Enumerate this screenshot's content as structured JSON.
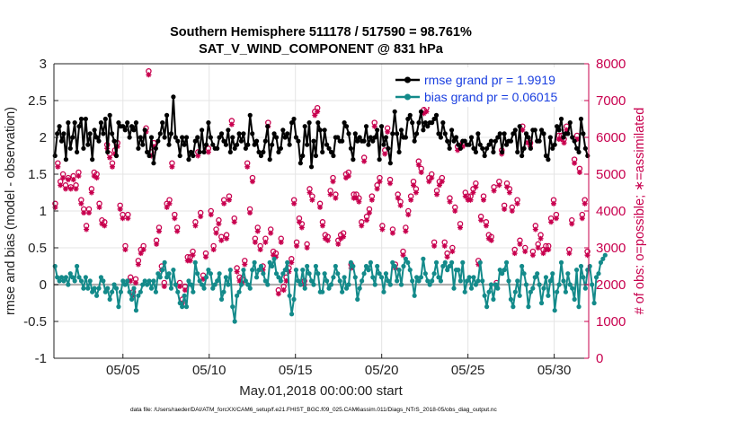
{
  "chart_data": {
    "type": "line",
    "title_line1": "Southern Hemisphere 511178 / 517590 = 98.761%",
    "title_line2": "SAT_V_WIND_COMPONENT @ 831 hPa",
    "xlabel": "May.01,2018 00:00:00 start",
    "ylabel_left": "rmse and bias (model - observation)",
    "ylabel_right": "# of obs: o=possible; ∗=assimilated",
    "footer": "data file: /Users/raeder/DAI/ATM_forcXX/CAM6_setup/f.e21.FHIST_BGC.f09_025.CAM6assim.011/Diags_NTrS_2018-05/obs_diag_output.nc",
    "x_range_days": [
      1,
      32
    ],
    "x_ticks": [
      {
        "day": 5,
        "label": "05/05"
      },
      {
        "day": 10,
        "label": "05/10"
      },
      {
        "day": 15,
        "label": "05/15"
      },
      {
        "day": 20,
        "label": "05/20"
      },
      {
        "day": 25,
        "label": "05/25"
      },
      {
        "day": 30,
        "label": "05/30"
      }
    ],
    "ylim_left": [
      -1,
      3
    ],
    "yticks_left": [
      "-1",
      "-0.5",
      "0",
      "0.5",
      "1",
      "1.5",
      "2",
      "2.5",
      "3"
    ],
    "ylim_right": [
      0,
      8000
    ],
    "yticks_right": [
      "0",
      "1000",
      "2000",
      "3000",
      "4000",
      "5000",
      "6000",
      "7000",
      "8000"
    ],
    "legend": [
      {
        "name": "rmse grand pr = 1.9919",
        "color": "#000000"
      },
      {
        "name": "bias grand pr = 0.06015",
        "color": "#138a8a"
      }
    ],
    "colors": {
      "rmse": "#000000",
      "bias": "#138a8a",
      "obs": "#c8004e",
      "zero_line": "#b0b0b0",
      "grid": "#e4e4e4"
    },
    "series": [
      {
        "name": "rmse",
        "values": [
          1.75,
          2.05,
          2.15,
          1.95,
          2.05,
          1.7,
          2.2,
          1.85,
          2.0,
          2.2,
          1.8,
          2.15,
          2.25,
          1.85,
          2.25,
          1.9,
          2.05,
          1.7,
          2.1,
          2.0,
          1.95,
          2.2,
          2.05,
          2.25,
          1.8,
          2.3,
          2.05,
          1.95,
          1.75,
          2.2,
          2.15,
          2.15,
          2.1,
          2.2,
          2.0,
          2.15,
          2.1,
          2.2,
          1.85,
          2.0,
          1.9,
          2.1,
          1.8,
          1.75,
          2.0,
          1.65,
          1.85,
          1.95,
          2.05,
          2.2,
          2.0,
          2.3,
          1.9,
          2.05,
          2.55,
          2.0,
          1.95,
          1.75,
          2.0,
          1.9,
          2.0,
          1.7,
          1.8,
          1.75,
          1.95,
          2.0,
          1.8,
          2.1,
          1.8,
          1.9,
          2.2,
          2.0,
          1.9,
          1.85,
          1.85,
          2.0,
          2.05,
          1.95,
          1.9,
          2.1,
          1.8,
          2.0,
          1.85,
          1.9,
          2.05,
          1.95,
          2.05,
          1.85,
          1.9,
          2.3,
          2.05,
          1.9,
          1.95,
          1.8,
          1.75,
          1.8,
          1.95,
          2.15,
          1.7,
          1.9,
          2.05,
          2.0,
          1.8,
          1.85,
          2.1,
          2.0,
          2.05,
          1.9,
          2.2,
          2.25,
          2.0,
          1.95,
          1.65,
          1.75,
          2.15,
          1.9,
          2.2,
          1.6,
          1.95,
          1.75,
          2.2,
          2.1,
          1.8,
          2.1,
          1.9,
          1.85,
          1.8,
          1.75,
          2.0,
          2.0,
          1.95,
          1.95,
          2.2,
          2.15,
          2.05,
          1.85,
          1.7,
          2.05,
          1.95,
          2.0,
          1.95,
          1.95,
          2.15,
          1.9,
          2.0,
          1.95,
          2.0,
          2.1,
          1.7,
          2.15,
          1.9,
          2.0,
          1.85,
          1.65,
          2.05,
          2.35,
          2.05,
          1.8,
          2.1,
          2.0,
          2.0,
          2.25,
          2.3,
          2.2,
          1.95,
          2.05,
          2.2,
          2.35,
          2.1,
          2.2,
          2.15,
          2.2,
          2.2,
          2.25,
          2.3,
          2.05,
          2.0,
          2.2,
          2.05,
          1.95,
          1.85,
          2.1,
          1.95,
          2.0,
          1.9,
          1.85,
          1.95,
          1.95,
          1.9,
          1.9,
          2.0,
          1.85,
          1.8,
          2.05,
          1.9,
          1.85,
          1.75,
          1.85,
          1.9,
          1.95,
          1.8,
          1.95,
          2.0,
          2.05,
          1.8,
          2.05,
          1.9,
          1.95,
          1.95,
          2.05,
          2.1,
          1.8,
          2.15,
          1.75,
          1.85,
          2.05,
          2.0,
          1.85,
          2.1,
          2.1,
          1.95,
          1.95,
          2.1,
          2.05,
          1.75,
          1.7,
          2.0,
          1.85,
          1.9,
          2.15,
          2.1,
          2.25,
          2.0,
          2.05,
          2.05,
          2.2,
          2.0,
          1.95,
          1.85,
          1.8,
          2.25,
          2.05,
          1.85,
          1.75
        ]
      },
      {
        "name": "bias",
        "values": [
          0.25,
          0.1,
          0.05,
          0.1,
          0.05,
          0.1,
          0.0,
          0.15,
          0.1,
          0.05,
          0.25,
          0.1,
          0.05,
          -0.05,
          0.1,
          -0.05,
          0.05,
          -0.1,
          -0.05,
          -0.15,
          -0.05,
          0.1,
          0.05,
          -0.1,
          -0.05,
          -0.2,
          -0.1,
          0.0,
          -0.05,
          -0.3,
          -0.1,
          0.05,
          0.0,
          0.05,
          -0.1,
          -0.2,
          -0.05,
          -0.35,
          -0.15,
          -0.1,
          0.0,
          0.05,
          0.0,
          0.05,
          -0.05,
          0.05,
          -0.1,
          0.15,
          0.1,
          0.2,
          0.3,
          0.1,
          0.15,
          -0.05,
          0.2,
          0.0,
          -0.1,
          -0.25,
          -0.3,
          -0.15,
          -0.3,
          0.05,
          0.0,
          -0.1,
          0.3,
          0.15,
          0.05,
          0.0,
          -0.05,
          0.1,
          0.2,
          0.15,
          -0.05,
          0.0,
          0.05,
          0.15,
          -0.2,
          -0.1,
          0.1,
          0.0,
          0.2,
          -0.3,
          -0.5,
          -0.15,
          -0.1,
          0.0,
          0.2,
          0.05,
          0.0,
          -0.05,
          0.2,
          0.3,
          0.1,
          0.2,
          0.25,
          0.15,
          0.05,
          0.0,
          0.3,
          0.25,
          0.35,
          0.15,
          0.1,
          0.05,
          0.15,
          0.2,
          0.3,
          -0.15,
          -0.4,
          -0.2,
          0.2,
          0.05,
          0.0,
          0.2,
          -0.05,
          0.25,
          0.15,
          0.05,
          0.0,
          0.25,
          0.15,
          -0.1,
          -0.1,
          0.15,
          0.05,
          -0.05,
          0.0,
          0.1,
          0.25,
          0.15,
          0.05,
          -0.1,
          0.1,
          -0.05,
          0.0,
          0.3,
          0.25,
          0.1,
          -0.2,
          -0.05,
          0.05,
          0.15,
          0.25,
          0.2,
          0.3,
          0.1,
          0.0,
          0.25,
          0.15,
          0.1,
          -0.1,
          0.15,
          0.05,
          0.0,
          0.3,
          0.25,
          0.05,
          0.2,
          0.0,
          0.25,
          0.35,
          0.3,
          0.2,
          0.05,
          -0.15,
          0.1,
          0.05,
          0.1,
          0.35,
          0.15,
          0.05,
          0.0,
          0.05,
          0.15,
          0.3,
          0.1,
          0.05,
          0.25,
          0.3,
          0.2,
          0.25,
          0.3,
          -0.05,
          0.2,
          0.2,
          0.05,
          0.3,
          -0.1,
          0.05,
          0.1,
          -0.05,
          0.1,
          0.0,
          0.05,
          0.3,
          0.05,
          -0.15,
          -0.3,
          -0.1,
          0.0,
          -0.2,
          0.0,
          -0.05,
          0.2,
          0.15,
          0.2,
          0.3,
          0.05,
          -0.2,
          -0.3,
          -0.1,
          0.05,
          -0.15,
          0.25,
          0.15,
          0.0,
          -0.3,
          -0.1,
          -0.05,
          0.1,
          0.15,
          0.0,
          -0.25,
          -0.05,
          0.1,
          -0.15,
          0.05,
          0.15,
          -0.35,
          -0.1,
          0.0,
          0.3,
          0.05,
          -0.1,
          0.15,
          0.0,
          -0.05,
          -0.2,
          0.2,
          -0.3,
          0.25,
          0.1,
          -0.05,
          0.2,
          0.25,
          0.0,
          -0.25,
          0.1,
          0.15,
          0.3,
          0.35,
          0.4
        ]
      },
      {
        "name": "obs_possible",
        "values": [
          4200,
          5300,
          4800,
          5000,
          4700,
          4900,
          4650,
          4950,
          4700,
          5050,
          4300,
          4050,
          3600,
          4050,
          4600,
          5050,
          5000,
          4200,
          3750,
          3700,
          5800,
          5550,
          5300,
          5650,
          5850,
          4150,
          3900,
          3050,
          3900,
          2200,
          1800,
          2150,
          2650,
          2950,
          3050,
          6250,
          7800,
          5600,
          5850,
          3200,
          3550,
          2500,
          2050,
          4200,
          4300,
          5300,
          3900,
          3550,
          2050,
          1600,
          1950,
          2750,
          2750,
          2900,
          3700,
          5600,
          3950,
          2250,
          2850,
          5700,
          4000,
          3050,
          3500,
          3750,
          3300,
          4300,
          3350,
          4400,
          6450,
          3800,
          2450,
          2200,
          2150,
          2650,
          5300,
          4050,
          4900,
          3250,
          3550,
          3050,
          2500,
          3250,
          6400,
          3500,
          2900,
          2850,
          1850,
          3250,
          1950,
          2200,
          2450,
          2700,
          4300,
          3150,
          3800,
          3650,
          2100,
          3100,
          4600,
          4400,
          6700,
          6800,
          4200,
          3700,
          3350,
          3300,
          4550,
          4900,
          4450,
          3200,
          3350,
          3400,
          5000,
          5050,
          2550,
          4450,
          4450,
          4350,
          3700,
          5450,
          3850,
          4050,
          4400,
          6400,
          4700,
          4900,
          3600,
          5650,
          6250,
          4850,
          3500,
          2550,
          4450,
          4250,
          2900,
          3550,
          4000,
          4400,
          4800,
          4600,
          5350,
          5150,
          6750,
          6800,
          4900,
          5000,
          3150,
          4550,
          4800,
          4900,
          3150,
          2850,
          4350,
          3000,
          4100,
          5750,
          3650,
          5850,
          4500,
          4400,
          4400,
          4600,
          4750,
          2650,
          3850,
          4400,
          3700,
          3350,
          3300,
          4650,
          2050,
          4800,
          5650,
          4150,
          4750,
          4600,
          4100,
          2950,
          4300,
          3200,
          6300,
          3000,
          5950,
          5850,
          2900,
          3600,
          3100,
          3350,
          2950,
          3050,
          3050,
          3800,
          4300,
          3900,
          6050,
          6050,
          5950,
          6300,
          2950,
          3750,
          5400,
          6050,
          5150,
          3900,
          4300,
          2900
        ]
      },
      {
        "name": "obs_assimilated",
        "values": [
          4100,
          5200,
          4700,
          4900,
          4600,
          4850,
          4600,
          4850,
          4600,
          4950,
          4200,
          3950,
          3500,
          3950,
          4500,
          4950,
          4900,
          4100,
          3650,
          3600,
          5700,
          5450,
          5200,
          5550,
          5750,
          4050,
          3800,
          2950,
          3800,
          2100,
          1700,
          2050,
          2550,
          2850,
          2950,
          6150,
          7700,
          5500,
          5750,
          3100,
          3450,
          2400,
          1950,
          4100,
          4200,
          5200,
          3800,
          3450,
          1950,
          1500,
          1850,
          2650,
          2650,
          2800,
          3600,
          5500,
          3850,
          2150,
          2750,
          5600,
          3900,
          2950,
          3400,
          3650,
          3200,
          4200,
          3250,
          4300,
          6350,
          3700,
          2350,
          2100,
          2050,
          2550,
          5200,
          3950,
          4800,
          3150,
          3450,
          2950,
          2400,
          3150,
          6300,
          3400,
          2800,
          2750,
          1750,
          3150,
          1850,
          2100,
          2350,
          2600,
          4200,
          3050,
          3700,
          3550,
          2000,
          3000,
          4500,
          4300,
          6600,
          6700,
          4100,
          3600,
          3250,
          3200,
          4450,
          4800,
          4350,
          3100,
          3250,
          3300,
          4900,
          4950,
          2450,
          4350,
          4350,
          4250,
          3600,
          5350,
          3750,
          3950,
          4300,
          6300,
          4600,
          4800,
          3500,
          5550,
          6150,
          4750,
          3400,
          2450,
          4350,
          4150,
          2800,
          3450,
          3900,
          4300,
          4700,
          4500,
          5250,
          5050,
          6650,
          6700,
          4800,
          4900,
          3050,
          4450,
          4700,
          4800,
          3050,
          2750,
          4250,
          2900,
          4000,
          5650,
          3550,
          5750,
          4400,
          4300,
          4300,
          4500,
          4650,
          2550,
          3750,
          4300,
          3600,
          3250,
          3200,
          4550,
          1950,
          4700,
          5550,
          4050,
          4650,
          4500,
          4000,
          2850,
          4200,
          3100,
          6200,
          2900,
          5850,
          5750,
          2800,
          3500,
          3000,
          3250,
          2850,
          2950,
          2950,
          3700,
          4200,
          3800,
          5950,
          5950,
          5850,
          6200,
          2850,
          3650,
          5300,
          5950,
          5050,
          3800,
          4200,
          2800
        ]
      }
    ]
  }
}
